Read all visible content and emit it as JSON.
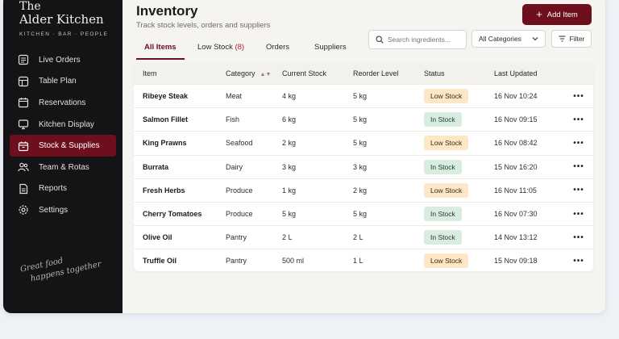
{
  "brand": {
    "line1": "The",
    "line2": "Alder Kitchen",
    "tagline": "KITCHEN · BAR · PEOPLE"
  },
  "sidebar": {
    "items": [
      {
        "label": "Live Orders",
        "icon": "list-icon"
      },
      {
        "label": "Table Plan",
        "icon": "table-icon"
      },
      {
        "label": "Reservations",
        "icon": "calendar-icon"
      },
      {
        "label": "Kitchen Display",
        "icon": "monitor-icon"
      },
      {
        "label": "Stock & Supplies",
        "icon": "box-icon",
        "active": true
      },
      {
        "label": "Team & Rotas",
        "icon": "team-icon"
      },
      {
        "label": "Reports",
        "icon": "document-icon"
      },
      {
        "label": "Settings",
        "icon": "gear-icon"
      }
    ],
    "script": {
      "line1": "Great food",
      "line2": "happens together"
    }
  },
  "header": {
    "title": "Inventory",
    "subtitle": "Track stock levels, orders and suppliers",
    "add_label": "Add Item"
  },
  "tabs": [
    {
      "label": "All Items",
      "active": true
    },
    {
      "label": "Low Stock",
      "count": "(8)"
    },
    {
      "label": "Orders"
    },
    {
      "label": "Suppliers"
    }
  ],
  "search": {
    "placeholder": "Search ingredients..."
  },
  "category_select": {
    "value": "All Categories"
  },
  "filter_label": "Filter",
  "table": {
    "columns": [
      "Item",
      "Category",
      "Current Stock",
      "Reorder Level",
      "Status",
      "Last Updated"
    ],
    "rows": [
      {
        "item": "Ribeye Steak",
        "category": "Meat",
        "stock": "4 kg",
        "reorder": "5 kg",
        "status": "Low Stock",
        "updated": "16 Nov 10:24"
      },
      {
        "item": "Salmon Fillet",
        "category": "Fish",
        "stock": "6 kg",
        "reorder": "5 kg",
        "status": "In Stock",
        "updated": "16 Nov 09:15"
      },
      {
        "item": "King Prawns",
        "category": "Seafood",
        "stock": "2 kg",
        "reorder": "5 kg",
        "status": "Low Stock",
        "updated": "16 Nov 08:42"
      },
      {
        "item": "Burrata",
        "category": "Dairy",
        "stock": "3 kg",
        "reorder": "3 kg",
        "status": "In Stock",
        "updated": "15 Nov 16:20"
      },
      {
        "item": "Fresh Herbs",
        "category": "Produce",
        "stock": "1 kg",
        "reorder": "2 kg",
        "status": "Low Stock",
        "updated": "16 Nov 11:05"
      },
      {
        "item": "Cherry Tomatoes",
        "category": "Produce",
        "stock": "5 kg",
        "reorder": "5 kg",
        "status": "In Stock",
        "updated": "16 Nov 07:30"
      },
      {
        "item": "Olive Oil",
        "category": "Pantry",
        "stock": "2 L",
        "reorder": "2 L",
        "status": "In Stock",
        "updated": "14 Nov 13:12"
      },
      {
        "item": "Truffle Oil",
        "category": "Pantry",
        "stock": "500 ml",
        "reorder": "1 L",
        "status": "Low Stock",
        "updated": "15 Nov 09:18"
      }
    ]
  },
  "colors": {
    "accent": "#6e0f1e",
    "sidebar_bg": "#141416",
    "low_badge": "#fde7c7",
    "in_badge": "#d8ecdf"
  }
}
